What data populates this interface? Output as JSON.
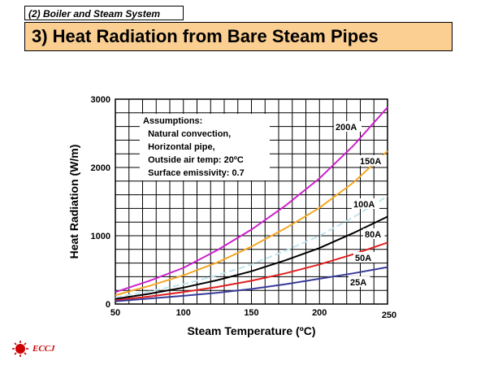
{
  "header": {
    "section_tag": "(2) Boiler and Steam System",
    "title": "3) Heat Radiation from Bare Steam Pipes"
  },
  "logo": {
    "text": "ECCJ"
  },
  "chart_data": {
    "type": "line",
    "xlabel": "Steam Temperature (ºC)",
    "ylabel": "Heat Radiation (W/m)",
    "xlim": [
      50,
      250
    ],
    "ylim": [
      0,
      3000
    ],
    "xticks": [
      50,
      100,
      150,
      200,
      250
    ],
    "yticks": [
      0,
      1000,
      2000,
      3000
    ],
    "grid": true,
    "annotation": [
      "Assumptions:",
      "  Natural convection,",
      "  Horizontal pipe,",
      "  Outside air temp: 20ºC",
      "  Surface emissivity: 0.7"
    ],
    "x": [
      50,
      75,
      100,
      125,
      150,
      175,
      200,
      225,
      250
    ],
    "series": [
      {
        "name": "200A",
        "color": "#cc22cc",
        "dash": false,
        "values": [
          175,
          340,
          530,
          790,
          1090,
          1440,
          1840,
          2320,
          2880
        ]
      },
      {
        "name": "150A",
        "color": "#f5a623",
        "dash": false,
        "values": [
          130,
          265,
          420,
          610,
          840,
          1110,
          1410,
          1780,
          2240
        ]
      },
      {
        "name": "100A",
        "color": "#c0e4ee",
        "dash": true,
        "values": [
          95,
          185,
          290,
          420,
          580,
          780,
          1000,
          1270,
          1580
        ]
      },
      {
        "name": "80A",
        "color": "#000000",
        "dash": false,
        "values": [
          75,
          150,
          240,
          350,
          480,
          640,
          820,
          1040,
          1280
        ]
      },
      {
        "name": "50A",
        "color": "#e02020",
        "dash": false,
        "values": [
          55,
          110,
          175,
          250,
          340,
          450,
          580,
          730,
          900
        ]
      },
      {
        "name": "25A",
        "color": "#3a3a9a",
        "dash": false,
        "values": [
          40,
          80,
          120,
          165,
          220,
          290,
          370,
          450,
          540
        ]
      }
    ]
  }
}
